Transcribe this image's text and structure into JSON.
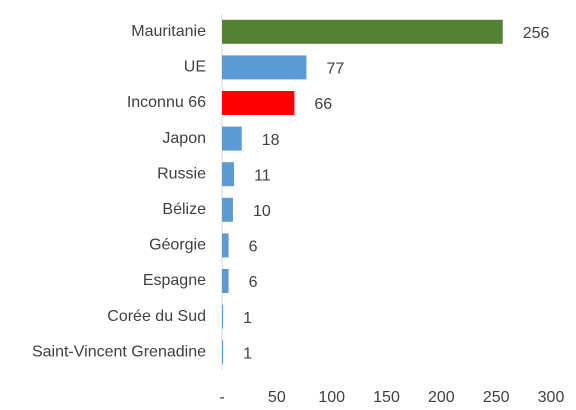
{
  "chart_data": {
    "type": "bar",
    "orientation": "horizontal",
    "categories": [
      "Mauritanie",
      "UE",
      "Inconnu 66",
      "Japon",
      "Russie",
      "Bélize",
      "Géorgie",
      "Espagne",
      "Corée du Sud",
      "Saint-Vincent Grenadine"
    ],
    "values": [
      256,
      77,
      66,
      18,
      11,
      10,
      6,
      6,
      1,
      1
    ],
    "colors": [
      "#548235",
      "#5b9bd5",
      "#ff0000",
      "#5b9bd5",
      "#5b9bd5",
      "#5b9bd5",
      "#5b9bd5",
      "#5b9bd5",
      "#5b9bd5",
      "#5b9bd5"
    ],
    "xlim": [
      0,
      300
    ],
    "xticks": [
      {
        "value": 0,
        "label": "-"
      },
      50,
      100,
      150,
      200,
      250,
      300
    ],
    "grid": false
  }
}
